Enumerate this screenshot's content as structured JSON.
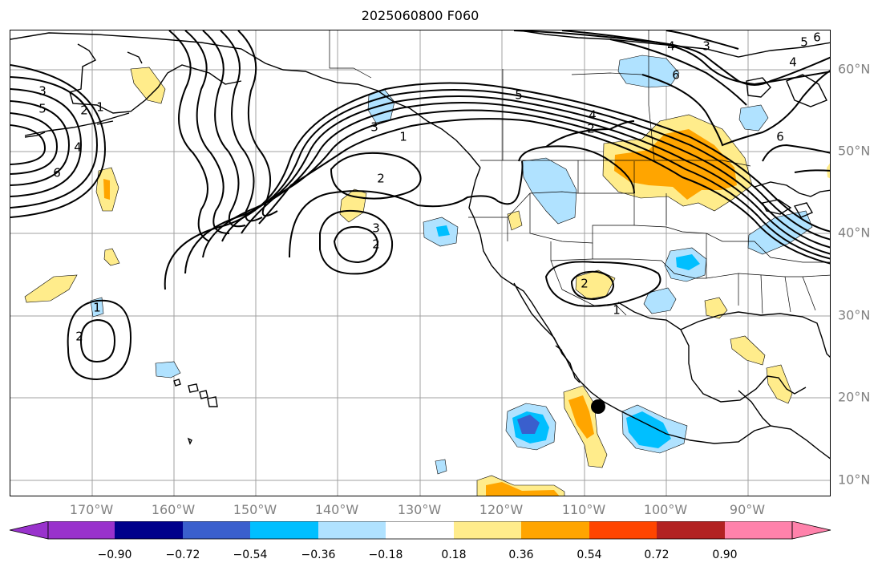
{
  "title": "2025060800 F060",
  "lon_labels": [
    "170°W",
    "160°W",
    "150°W",
    "140°W",
    "130°W",
    "120°W",
    "110°W",
    "100°W",
    "90°W"
  ],
  "lat_labels": [
    "60°N",
    "50°N",
    "40°N",
    "30°N",
    "20°N",
    "10°N"
  ],
  "colorbar": {
    "colors": [
      "#9932cc",
      "#00008b",
      "#3a5fcd",
      "#00bfff",
      "#b0e2ff",
      "#ffffff",
      "#ffec8b",
      "#ffa500",
      "#ff4500",
      "#b22222",
      "#ff82ab"
    ],
    "ticks": [
      "−0.90",
      "−0.72",
      "−0.54",
      "−0.36",
      "−0.18",
      "0.18",
      "0.36",
      "0.54",
      "0.72",
      "0.90"
    ]
  },
  "contour_labels": [
    "3",
    "5",
    "2",
    "1",
    "4",
    "6",
    "3",
    "1",
    "2",
    "3",
    "2",
    "1",
    "5",
    "4",
    "2",
    "6",
    "3",
    "4",
    "6",
    "4",
    "5",
    "6",
    "2",
    "1",
    "2"
  ],
  "marker": {
    "name": "storm-center",
    "lon": -108.5,
    "lat": 19
  }
}
